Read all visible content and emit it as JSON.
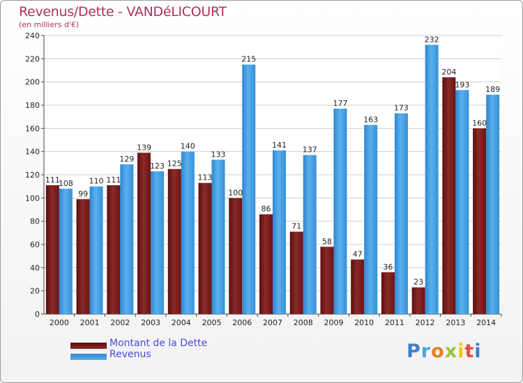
{
  "chart_data": {
    "type": "bar",
    "title": "Revenus/Dette - VANDéLICOURT",
    "subtitle": "(en milliers d'€)",
    "categories": [
      "2000",
      "2001",
      "2002",
      "2003",
      "2004",
      "2005",
      "2006",
      "2007",
      "2008",
      "2009",
      "2010",
      "2011",
      "2012",
      "2013",
      "2014"
    ],
    "series": [
      {
        "name": "Montant de la Dette",
        "color": "#7a1e1e",
        "values": [
          111,
          99,
          111,
          139,
          125,
          113,
          100,
          86,
          71,
          58,
          47,
          36,
          23,
          204,
          160
        ]
      },
      {
        "name": "Revenus",
        "color": "#3a95dc",
        "values": [
          108,
          110,
          129,
          123,
          140,
          133,
          215,
          141,
          137,
          177,
          163,
          173,
          232,
          193,
          189
        ]
      }
    ],
    "ylim": [
      0,
      240
    ],
    "yticks": [
      0,
      20,
      40,
      60,
      80,
      100,
      120,
      140,
      160,
      180,
      200,
      220,
      240
    ],
    "grid": true,
    "legend_position": "bottom-left"
  },
  "logo": {
    "text": "Proxiti",
    "letters": [
      "P",
      "r",
      "o",
      "x",
      "i",
      "t",
      "i"
    ]
  }
}
